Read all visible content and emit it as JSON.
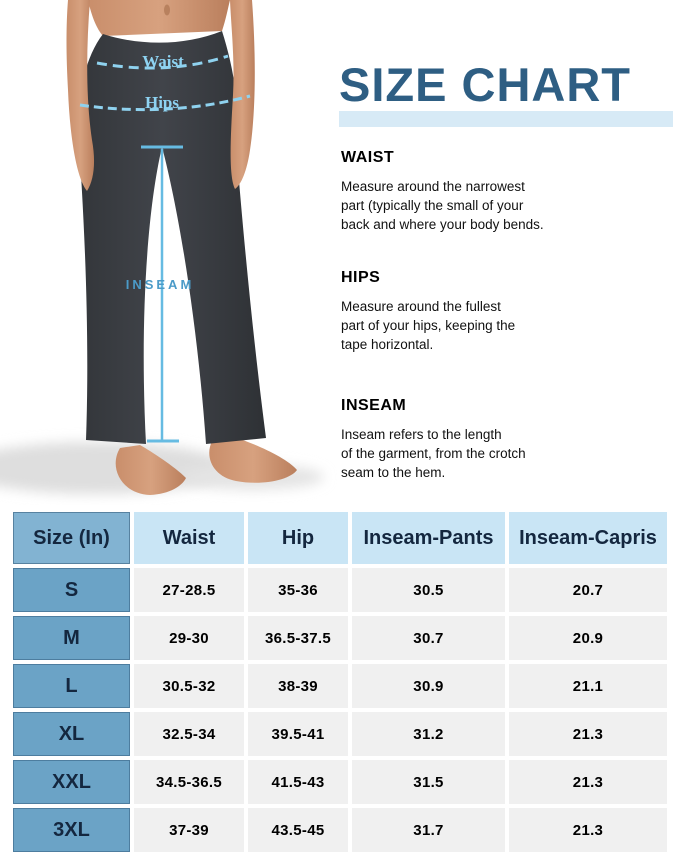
{
  "title": "SIZE CHART",
  "figure_annotations": {
    "waist": "Waist",
    "hips": "Hips",
    "inseam": "INSEAM"
  },
  "sections": [
    {
      "heading": "WAIST",
      "body": "Measure around the narrowest\npart (typically the small of your\nback and where your body bends."
    },
    {
      "heading": "HIPS",
      "body": "Measure around the fullest\npart of your hips, keeping the\ntape horizontal."
    },
    {
      "heading": "INSEAM",
      "body": "Inseam refers to the length\nof the garment, from the crotch\nseam to the hem."
    }
  ],
  "chart_data": {
    "type": "table",
    "title": "SIZE CHART",
    "columns": [
      "Size (In)",
      "Waist",
      "Hip",
      "Inseam-Pants",
      "Inseam-Capris"
    ],
    "rows": [
      [
        "S",
        "27-28.5",
        "35-36",
        "30.5",
        "20.7"
      ],
      [
        "M",
        "29-30",
        "36.5-37.5",
        "30.7",
        "20.9"
      ],
      [
        "L",
        "30.5-32",
        "38-39",
        "30.9",
        "21.1"
      ],
      [
        "XL",
        "32.5-34",
        "39.5-41",
        "31.2",
        "21.3"
      ],
      [
        "XXL",
        "34.5-36.5",
        "41.5-43",
        "31.5",
        "21.3"
      ],
      [
        "3XL",
        "37-39",
        "43.5-45",
        "31.7",
        "21.3"
      ]
    ],
    "units": "inches"
  },
  "colors": {
    "title": "#2e5e83",
    "title_band": "#d7eaf6",
    "header_first_bg": "#82b3d2",
    "header_bg": "#c9e5f5",
    "size_col_bg": "#6ba3c6",
    "cell_bg": "#f0f0f0",
    "annotation_line": "#8fd2ef",
    "annotation_text": "#4b9bc8",
    "annotation_text_light": "#8ed3f2",
    "pants": "#3a3d41",
    "skin": "#d09a77"
  }
}
